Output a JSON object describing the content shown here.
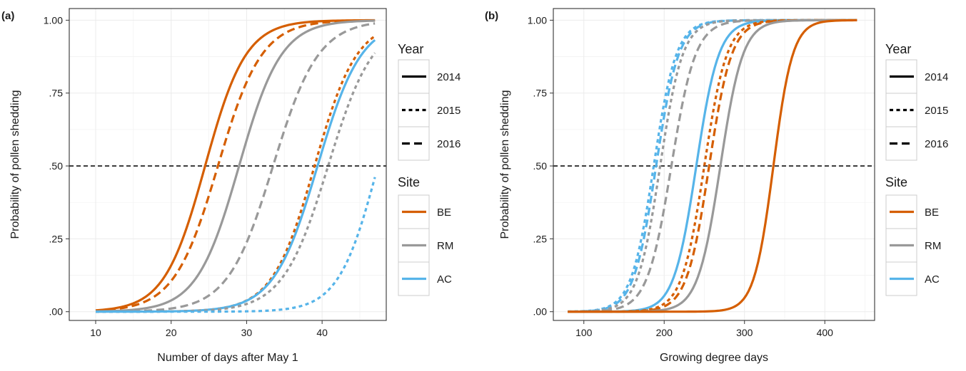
{
  "colors": {
    "BE": "#d55e00",
    "RM": "#999999",
    "AC": "#56b4e9",
    "grid": "#ebebeb",
    "panel_border": "#333333",
    "legend_key_border": "#cccccc"
  },
  "legend": {
    "year_title": "Year",
    "years": [
      "2014",
      "2015",
      "2016"
    ],
    "site_title": "Site",
    "sites": [
      "BE",
      "RM",
      "AC"
    ]
  },
  "chart_data": [
    {
      "type": "line",
      "panel_label": "(a)",
      "xlabel": "Number of days after May 1",
      "ylabel": "Probability of pollen shedding",
      "xlim": [
        6.5,
        48.5
      ],
      "ylim": [
        -0.03,
        1.04
      ],
      "xticks": [
        10,
        20,
        30,
        40
      ],
      "xtick_labels": [
        "10",
        "20",
        "30",
        "40"
      ],
      "yticks": [
        0,
        0.25,
        0.5,
        0.75,
        1.0
      ],
      "ytick_labels": [
        ".00",
        ".25",
        ".50",
        ".75",
        "1.00"
      ],
      "hline": 0.5,
      "x_range": [
        10,
        47
      ],
      "grid": true,
      "series": [
        {
          "site": "BE",
          "year": "2014",
          "midpoint": 24.5,
          "scale": 2.7
        },
        {
          "site": "BE",
          "year": "2016",
          "midpoint": 26.2,
          "scale": 2.9
        },
        {
          "site": "RM",
          "year": "2014",
          "midpoint": 29.0,
          "scale": 2.8
        },
        {
          "site": "RM",
          "year": "2016",
          "midpoint": 33.5,
          "scale": 3.0
        },
        {
          "site": "BE",
          "year": "2015",
          "midpoint": 39.0,
          "scale": 2.8
        },
        {
          "site": "AC",
          "year": "2014",
          "midpoint": 39.4,
          "scale": 2.9
        },
        {
          "site": "RM",
          "year": "2015",
          "midpoint": 40.8,
          "scale": 3.0
        },
        {
          "site": "AC",
          "year": "2015",
          "midpoint": 47.4,
          "scale": 2.6
        }
      ]
    },
    {
      "type": "line",
      "panel_label": "(b)",
      "xlabel": "Growing degree days",
      "ylabel": "Probability of pollen shedding",
      "xlim": [
        62,
        462
      ],
      "ylim": [
        -0.03,
        1.04
      ],
      "xticks": [
        100,
        200,
        300,
        400
      ],
      "xtick_labels": [
        "100",
        "200",
        "300",
        "400"
      ],
      "yticks": [
        0,
        0.25,
        0.5,
        0.75,
        1.0
      ],
      "ytick_labels": [
        ".00",
        ".25",
        ".50",
        ".75",
        "1.00"
      ],
      "hline": 0.5,
      "x_range": [
        80,
        440
      ],
      "grid": true,
      "series": [
        {
          "site": "AC",
          "year": "2015",
          "midpoint": 187,
          "scale": 14
        },
        {
          "site": "AC",
          "year": "2016",
          "midpoint": 190,
          "scale": 14
        },
        {
          "site": "RM",
          "year": "2015",
          "midpoint": 195,
          "scale": 14
        },
        {
          "site": "RM",
          "year": "2016",
          "midpoint": 209,
          "scale": 15
        },
        {
          "site": "AC",
          "year": "2014",
          "midpoint": 240,
          "scale": 14
        },
        {
          "site": "BE",
          "year": "2015",
          "midpoint": 250,
          "scale": 14
        },
        {
          "site": "BE",
          "year": "2016",
          "midpoint": 256,
          "scale": 14
        },
        {
          "site": "RM",
          "year": "2014",
          "midpoint": 270,
          "scale": 14
        },
        {
          "site": "BE",
          "year": "2014",
          "midpoint": 336,
          "scale": 12
        }
      ]
    }
  ]
}
